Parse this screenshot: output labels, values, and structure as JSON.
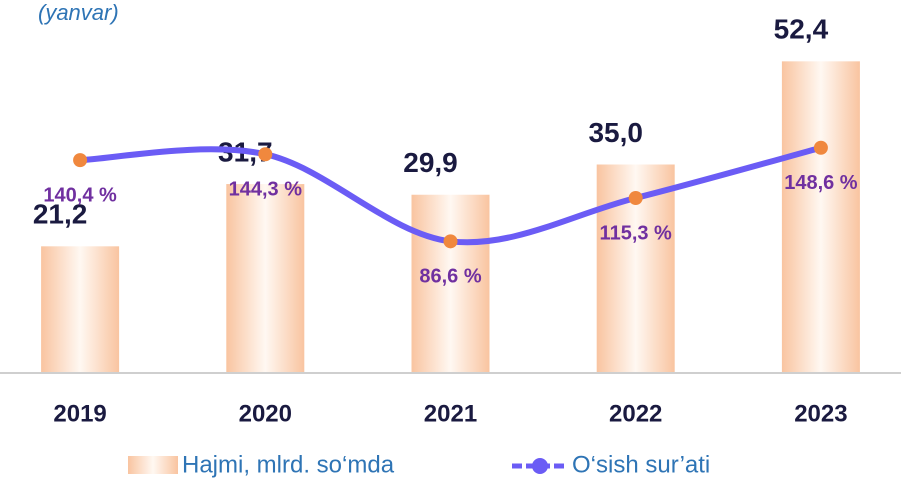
{
  "chart_data": {
    "type": "bar",
    "subtitle": "(yanvar)",
    "categories": [
      "2019",
      "2020",
      "2021",
      "2022",
      "2023"
    ],
    "series": [
      {
        "name": "Hajmi, mlrd. so‘mda",
        "type": "bar",
        "color": "#f9c4a0",
        "values": [
          21.2,
          31.7,
          29.9,
          35.0,
          52.4
        ],
        "value_labels": [
          "21,2",
          "31,7",
          "29,9",
          "35,0",
          "52,4"
        ]
      },
      {
        "name": "O‘sish sur’ati",
        "type": "line",
        "axis": "y2",
        "color": "#6b5cf5",
        "marker_color": "#f0883e",
        "values": [
          140.4,
          144.3,
          86.6,
          115.3,
          148.6
        ],
        "value_labels": [
          "140,4 %",
          "144,3 %",
          "86,6 %",
          "115,3 %",
          "148,6 %"
        ]
      }
    ],
    "ylim": [
      0,
      56
    ],
    "y2lim": [
      0,
      220
    ]
  }
}
